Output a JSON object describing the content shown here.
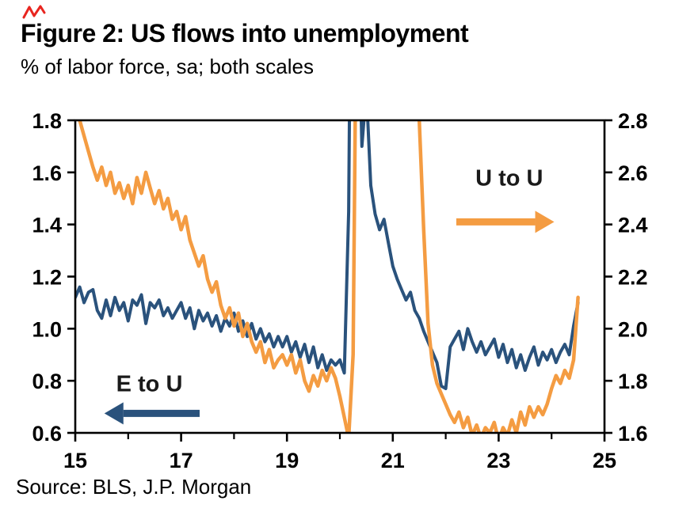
{
  "header": {
    "title": "Figure 2: US flows into unemployment",
    "subtitle": "% of labor force, sa; both scales"
  },
  "footer": {
    "source": "Source: BLS, J.P. Morgan"
  },
  "colors": {
    "e_to_u": "#2a527c",
    "u_to_u": "#f49c42",
    "axis": "#000000",
    "red_mark": "#e8251f"
  },
  "chart_data": {
    "type": "line",
    "title": "Figure 2: US flows into unemployment",
    "subtitle": "% of labor force, sa; both scales",
    "grid": false,
    "legend_position": "in-plot annotations with arrows",
    "x_range": [
      15,
      25
    ],
    "x_start": 15.0,
    "x_step": 0.0833333,
    "x_axis": {
      "tick_values": [
        15,
        17,
        19,
        21,
        23,
        25
      ],
      "tick_labels": [
        "15",
        "17",
        "19",
        "21",
        "23",
        "25"
      ],
      "minor_ticks": [
        16,
        18,
        20,
        22,
        24
      ]
    },
    "left_axis": {
      "series": "E to U",
      "range": [
        0.6,
        1.8
      ],
      "tick_values": [
        0.6,
        0.8,
        1.0,
        1.2,
        1.4,
        1.6,
        1.8
      ],
      "tick_labels": [
        "0.6",
        "0.8",
        "1.0",
        "1.2",
        "1.4",
        "1.6",
        "1.8"
      ]
    },
    "right_axis": {
      "series": "U to U",
      "range": [
        1.6,
        2.8
      ],
      "tick_values": [
        1.6,
        1.8,
        2.0,
        2.2,
        2.4,
        2.6,
        2.8
      ],
      "tick_labels": [
        "1.6",
        "1.8",
        "2.0",
        "2.2",
        "2.4",
        "2.6",
        "2.8"
      ]
    },
    "series": [
      {
        "name": "E to U",
        "axis": "left",
        "color": "#2a527c",
        "width": 4,
        "values": [
          1.12,
          1.16,
          1.1,
          1.14,
          1.15,
          1.07,
          1.04,
          1.11,
          1.05,
          1.12,
          1.07,
          1.1,
          1.03,
          1.11,
          1.09,
          1.13,
          1.02,
          1.1,
          1.08,
          1.11,
          1.05,
          1.08,
          1.04,
          1.07,
          1.1,
          1.04,
          1.08,
          1.0,
          1.07,
          1.03,
          1.06,
          1.01,
          1.05,
          0.99,
          1.04,
          1.01,
          1.06,
          0.99,
          1.03,
          0.97,
          1.02,
          0.96,
          1.0,
          0.95,
          0.98,
          0.93,
          0.97,
          0.93,
          0.97,
          0.91,
          0.95,
          0.89,
          0.94,
          0.87,
          0.93,
          0.85,
          0.9,
          0.84,
          0.88,
          0.86,
          0.88,
          0.83,
          1.45,
          3.6,
          2.4,
          1.7,
          1.92,
          1.55,
          1.44,
          1.38,
          1.42,
          1.33,
          1.24,
          1.19,
          1.15,
          1.11,
          1.14,
          1.07,
          1.04,
          0.99,
          0.95,
          0.91,
          0.87,
          0.78,
          0.77,
          0.93,
          0.96,
          0.99,
          0.92,
          1.0,
          0.95,
          0.91,
          0.95,
          0.9,
          0.93,
          0.96,
          0.89,
          0.94,
          0.87,
          0.92,
          0.85,
          0.9,
          0.84,
          0.89,
          0.93,
          0.86,
          0.91,
          0.88,
          0.92,
          0.87,
          0.91,
          0.94,
          0.9,
          1.01,
          1.1
        ]
      },
      {
        "name": "U to U",
        "axis": "right",
        "color": "#f49c42",
        "width": 4.5,
        "values": [
          2.86,
          2.8,
          2.74,
          2.68,
          2.62,
          2.57,
          2.62,
          2.55,
          2.6,
          2.52,
          2.56,
          2.5,
          2.55,
          2.48,
          2.58,
          2.52,
          2.6,
          2.54,
          2.48,
          2.53,
          2.46,
          2.5,
          2.42,
          2.45,
          2.38,
          2.43,
          2.34,
          2.29,
          2.24,
          2.28,
          2.19,
          2.14,
          2.18,
          2.09,
          2.04,
          2.08,
          2.01,
          2.06,
          1.97,
          2.02,
          1.95,
          1.91,
          1.95,
          1.87,
          1.92,
          1.85,
          1.88,
          1.9,
          1.86,
          1.9,
          1.83,
          1.88,
          1.8,
          1.76,
          1.82,
          1.78,
          1.84,
          1.8,
          1.85,
          1.81,
          1.74,
          1.66,
          1.58,
          1.9,
          3.8,
          3.6,
          3.5,
          3.4,
          3.35,
          3.28,
          3.2,
          3.12,
          3.1,
          3.05,
          3.0,
          2.96,
          2.92,
          2.88,
          2.8,
          2.38,
          2.02,
          1.86,
          1.79,
          1.75,
          1.71,
          1.67,
          1.64,
          1.68,
          1.62,
          1.66,
          1.59,
          1.63,
          1.58,
          1.62,
          1.6,
          1.64,
          1.57,
          1.62,
          1.59,
          1.65,
          1.6,
          1.68,
          1.63,
          1.7,
          1.66,
          1.7,
          1.67,
          1.71,
          1.77,
          1.82,
          1.79,
          1.84,
          1.81,
          1.88,
          2.12
        ]
      }
    ],
    "annotations": [
      {
        "name": "u-to-u-label",
        "text": "U to U",
        "x": 23.2,
        "y": 2.58,
        "axis": "right",
        "color": "#1a1a1a"
      },
      {
        "name": "e-to-u-label",
        "text": "E to U",
        "x": 16.4,
        "y": 0.79,
        "axis": "left",
        "color": "#1a1a1a"
      }
    ],
    "arrows": [
      {
        "name": "u-to-u-arrow",
        "x_tail": 22.2,
        "x_head": 24.05,
        "y": 2.41,
        "axis": "right",
        "color": "#f49c42"
      },
      {
        "name": "e-to-u-arrow",
        "x_tail": 17.35,
        "x_head": 15.55,
        "y": 0.675,
        "axis": "left",
        "color": "#2a527c"
      }
    ]
  }
}
